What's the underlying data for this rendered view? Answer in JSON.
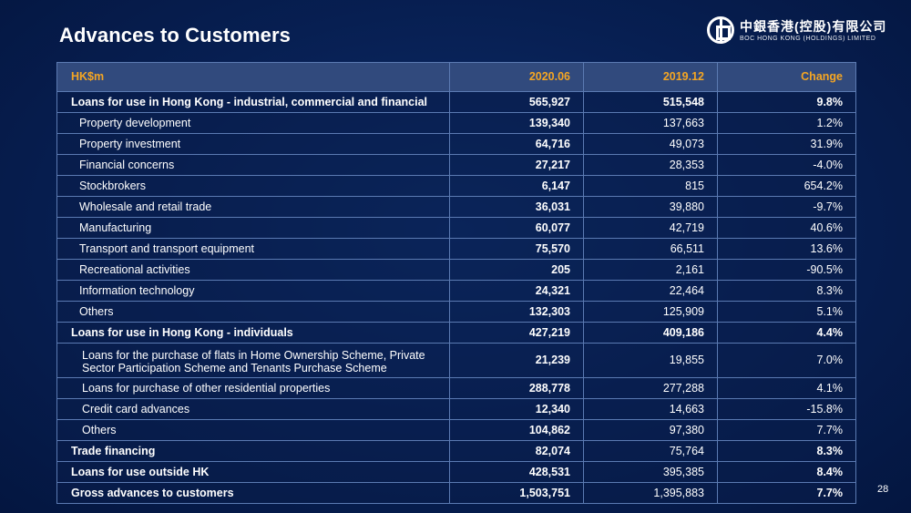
{
  "slide": {
    "title": "Advances to Customers",
    "page_number": "28"
  },
  "logo": {
    "chinese": "中銀香港(控股)有限公司",
    "english": "BOC HONG KONG (HOLDINGS) LIMITED"
  },
  "table": {
    "headers": [
      "HK$m",
      "2020.06",
      "2019.12",
      "Change"
    ],
    "rows": [
      {
        "label": "Loans for use in Hong Kong - industrial, commercial and financial",
        "v2020": "565,927",
        "v2019": "515,548",
        "change": "9.8%"
      },
      {
        "label": "Property development",
        "v2020": "139,340",
        "v2019": "137,663",
        "change": "1.2%"
      },
      {
        "label": "Property investment",
        "v2020": "64,716",
        "v2019": "49,073",
        "change": "31.9%"
      },
      {
        "label": "Financial concerns",
        "v2020": "27,217",
        "v2019": "28,353",
        "change": "-4.0%"
      },
      {
        "label": "Stockbrokers",
        "v2020": "6,147",
        "v2019": "815",
        "change": "654.2%"
      },
      {
        "label": "Wholesale and retail trade",
        "v2020": "36,031",
        "v2019": "39,880",
        "change": "-9.7%"
      },
      {
        "label": "Manufacturing",
        "v2020": "60,077",
        "v2019": "42,719",
        "change": "40.6%"
      },
      {
        "label": "Transport and transport equipment",
        "v2020": "75,570",
        "v2019": "66,511",
        "change": "13.6%"
      },
      {
        "label": "Recreational activities",
        "v2020": "205",
        "v2019": "2,161",
        "change": "-90.5%"
      },
      {
        "label": "Information technology",
        "v2020": "24,321",
        "v2019": "22,464",
        "change": "8.3%"
      },
      {
        "label": "Others",
        "v2020": "132,303",
        "v2019": "125,909",
        "change": "5.1%"
      },
      {
        "label": "Loans for use in Hong Kong - individuals",
        "v2020": "427,219",
        "v2019": "409,186",
        "change": "4.4%"
      },
      {
        "label": "Loans for the purchase of flats in Home Ownership Scheme, Private Sector Participation Scheme and Tenants Purchase Scheme",
        "v2020": "21,239",
        "v2019": "19,855",
        "change": "7.0%"
      },
      {
        "label": "Loans for purchase of other residential properties",
        "v2020": "288,778",
        "v2019": "277,288",
        "change": "4.1%"
      },
      {
        "label": "Credit card advances",
        "v2020": "12,340",
        "v2019": "14,663",
        "change": "-15.8%"
      },
      {
        "label": "Others",
        "v2020": "104,862",
        "v2019": "97,380",
        "change": "7.7%"
      },
      {
        "label": "Trade financing",
        "v2020": "82,074",
        "v2019": "75,764",
        "change": "8.3%"
      },
      {
        "label": "Loans for use outside HK",
        "v2020": "428,531",
        "v2019": "395,385",
        "change": "8.4%"
      },
      {
        "label": "Gross advances to customers",
        "v2020": "1,503,751",
        "v2019": "1,395,883",
        "change": "7.7%"
      }
    ]
  }
}
